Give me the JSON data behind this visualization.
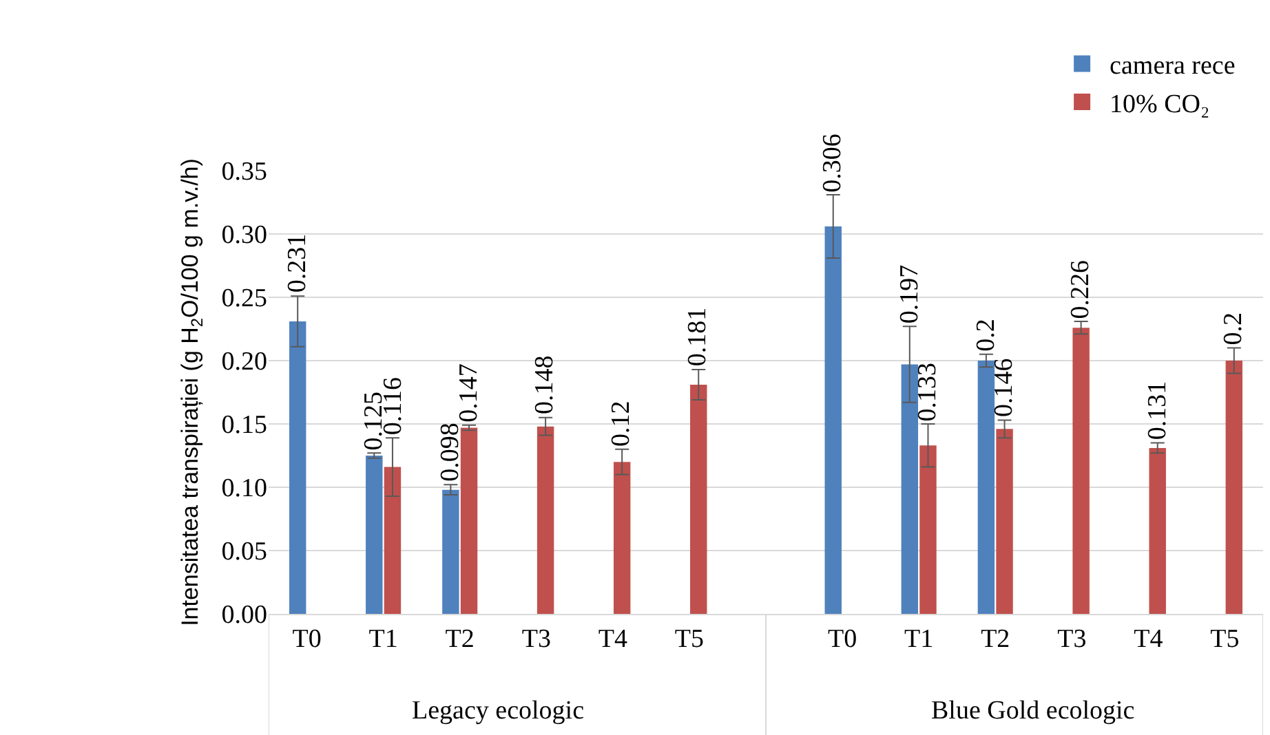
{
  "chart_data": {
    "type": "bar",
    "ylabel": "Intensitatea transpirației (g H$_{2}$O/100 g m.v./h)",
    "categories": [
      "T0",
      "T1",
      "T2",
      "T3",
      "T4",
      "T5",
      null,
      "T0",
      "T1",
      "T2",
      "T3",
      "T4",
      "T5"
    ],
    "series": [
      {
        "name": "camera rece",
        "color": "#4f81bd",
        "values": [
          0.231,
          0.125,
          0.098,
          null,
          null,
          null,
          null,
          0.306,
          0.197,
          0.2,
          null,
          null,
          null
        ],
        "errors": [
          0.02,
          0.002,
          0.004,
          null,
          null,
          null,
          null,
          0.025,
          0.03,
          0.005,
          null,
          null,
          null
        ]
      },
      {
        "name": "10% CO₂",
        "color": "#c0504d",
        "values": [
          null,
          0.116,
          0.147,
          0.148,
          0.12,
          0.181,
          null,
          null,
          0.133,
          0.146,
          0.226,
          0.131,
          0.2
        ],
        "errors": [
          null,
          0.023,
          0.002,
          0.007,
          0.01,
          0.012,
          null,
          null,
          0.017,
          0.007,
          0.005,
          0.004,
          0.01
        ]
      }
    ],
    "annotations": [
      "Legacy ecologic",
      "Blue Gold ecologic"
    ],
    "ylim": [
      0,
      0.35
    ],
    "yticks": [
      {
        "value": 0,
        "label": "0.00"
      },
      {
        "value": 0.05,
        "label": "0.05"
      },
      {
        "value": 0.1,
        "label": "0.10"
      },
      {
        "value": 0.15,
        "label": "0.15"
      },
      {
        "value": 0.2,
        "label": "0.20"
      },
      {
        "value": 0.25,
        "label": "0.25"
      },
      {
        "value": 0.3,
        "label": "0.30"
      },
      {
        "value": 0.35,
        "label": "0.35"
      }
    ],
    "grid": "y",
    "legend": "top right",
    "data_labels": true
  }
}
